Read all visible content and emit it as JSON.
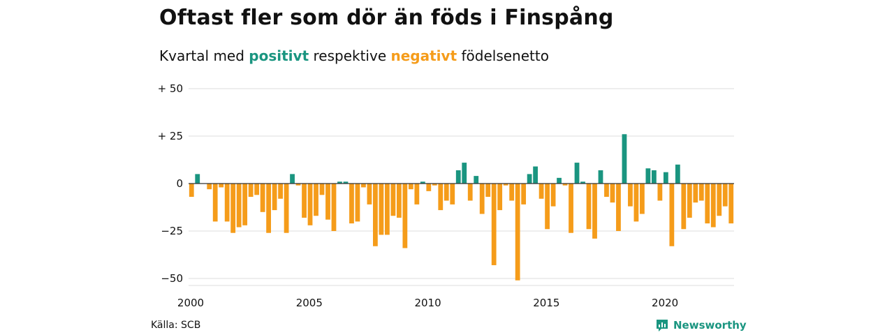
{
  "header": {
    "title": "Oftast fler som dör än föds i Finspång",
    "subtitle_start": "Kvartal med",
    "subtitle_positive": "positivt",
    "subtitle_middle": "respektive",
    "subtitle_negative": "negativt",
    "subtitle_end": "födelsenetto"
  },
  "footer": {
    "source": "Källa: SCB",
    "brand": "Newsworthy"
  },
  "colors": {
    "positive": "#1a9580",
    "negative": "#f59c1a",
    "grid": "#dddddd",
    "axis": "#333333"
  },
  "chart_data": {
    "type": "bar",
    "x_unit": "quarter",
    "start": "2000 Q1",
    "end": "2022 Q4",
    "x_ticks": [
      "2000",
      "2005",
      "2010",
      "2015",
      "2020"
    ],
    "y_ticks": [
      "−50",
      "−25",
      "0",
      "+ 25",
      "+ 50"
    ],
    "y_tick_values": [
      -50,
      -25,
      0,
      25,
      50
    ],
    "ylim": [
      -50,
      50
    ],
    "grid": true,
    "values": [
      -7,
      5,
      0,
      -3,
      -20,
      -2,
      -20,
      -26,
      -23,
      -22,
      -7,
      -6,
      -15,
      -26,
      -14,
      -8,
      -26,
      5,
      -1,
      -18,
      -22,
      -17,
      -6,
      -19,
      -25,
      1,
      1,
      -21,
      -20,
      -2,
      -11,
      -33,
      -27,
      -27,
      -17,
      -18,
      -34,
      -3,
      -11,
      1,
      -4,
      -1,
      -14,
      -9,
      -11,
      7,
      11,
      -9,
      4,
      -16,
      -7,
      -43,
      -14,
      -1,
      -9,
      -51,
      -11,
      5,
      9,
      -8,
      -24,
      -12,
      3,
      -1,
      -26,
      11,
      1,
      -24,
      -29,
      7,
      -7,
      -10,
      -25,
      26,
      -12,
      -20,
      -16,
      8,
      7,
      -9,
      6,
      -33,
      10,
      -24,
      -18,
      -10,
      -9,
      -21,
      -23,
      -17,
      -12,
      -21
    ]
  }
}
